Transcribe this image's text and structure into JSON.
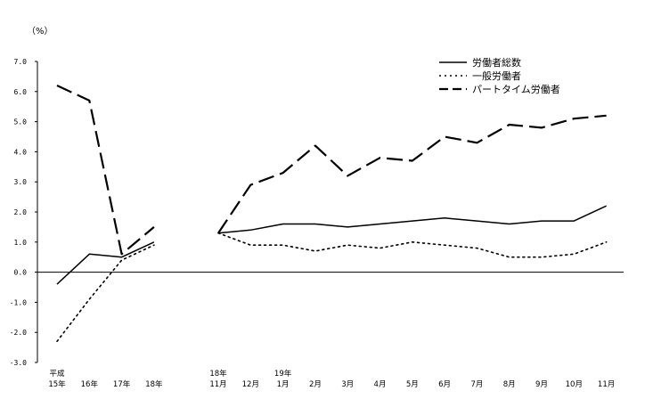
{
  "chart_data": {
    "type": "line",
    "unit_label": "（%）",
    "ylim": [
      -3.0,
      7.0
    ],
    "y_ticks": [
      "7.0",
      "6.0",
      "5.0",
      "4.0",
      "3.0",
      "2.0",
      "1.0",
      "0.0",
      "-1.0",
      "-2.0",
      "-3.0"
    ],
    "grid": false,
    "legend_position": "top-right",
    "panels": [
      {
        "categories": [
          {
            "top": "平成",
            "bottom": "15年"
          },
          {
            "top": "",
            "bottom": "16年"
          },
          {
            "top": "",
            "bottom": "17年"
          },
          {
            "top": "",
            "bottom": "18年"
          }
        ]
      },
      {
        "categories": [
          {
            "top": "18年",
            "bottom": "11月"
          },
          {
            "top": "",
            "bottom": "12月"
          },
          {
            "top": "19年",
            "bottom": "1月"
          },
          {
            "top": "",
            "bottom": "2月"
          },
          {
            "top": "",
            "bottom": "3月"
          },
          {
            "top": "",
            "bottom": "4月"
          },
          {
            "top": "",
            "bottom": "5月"
          },
          {
            "top": "",
            "bottom": "6月"
          },
          {
            "top": "",
            "bottom": "7月"
          },
          {
            "top": "",
            "bottom": "8月"
          },
          {
            "top": "",
            "bottom": "9月"
          },
          {
            "top": "",
            "bottom": "10月"
          },
          {
            "top": "",
            "bottom": "11月"
          }
        ]
      }
    ],
    "series": [
      {
        "name": "労働者総数",
        "style": "solid",
        "values": [
          [
            -0.4,
            0.6,
            0.5,
            1.0
          ],
          [
            1.3,
            1.4,
            1.6,
            1.6,
            1.5,
            1.6,
            1.7,
            1.8,
            1.7,
            1.6,
            1.7,
            1.7,
            2.2
          ]
        ]
      },
      {
        "name": "一般労働者",
        "style": "dotted",
        "values": [
          [
            -2.3,
            -0.9,
            0.4,
            0.9
          ],
          [
            1.3,
            0.9,
            0.9,
            0.7,
            0.9,
            0.8,
            1.0,
            0.9,
            0.8,
            0.5,
            0.5,
            0.6,
            1.0
          ]
        ]
      },
      {
        "name": "パートタイム労働者",
        "style": "dashed",
        "values": [
          [
            6.2,
            5.7,
            0.6,
            1.5
          ],
          [
            1.3,
            2.9,
            3.3,
            4.2,
            3.2,
            3.8,
            3.7,
            4.5,
            4.3,
            4.9,
            4.8,
            5.1,
            5.2
          ]
        ]
      }
    ]
  }
}
